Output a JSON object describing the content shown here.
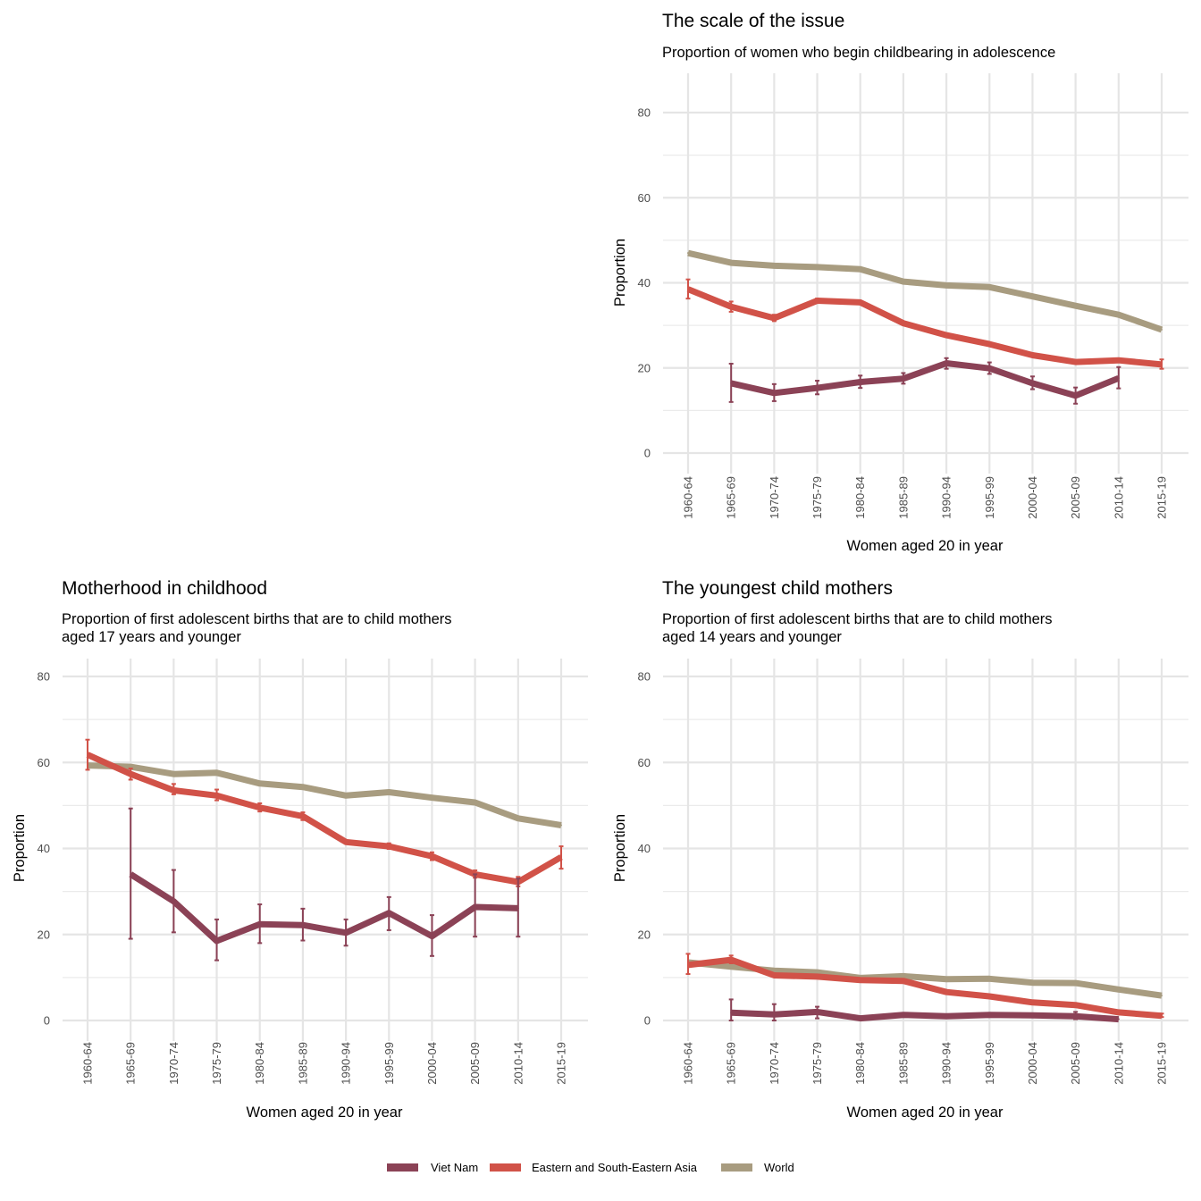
{
  "chart_data": [
    {
      "type": "line",
      "title": "The scale of the issue",
      "subtitle": "Proportion of women who begin childbearing in adolescence",
      "xlabel": "Women aged 20 in year",
      "ylabel": "Proportion",
      "ylim": [
        0,
        80
      ],
      "yticks": [
        "0",
        "20",
        "40",
        "60",
        "80"
      ],
      "grid": true,
      "categories": [
        "1960-64",
        "1965-69",
        "1970-74",
        "1975-79",
        "1980-84",
        "1985-89",
        "1990-94",
        "1995-99",
        "2000-04",
        "2005-09",
        "2010-14",
        "2015-19"
      ],
      "series": [
        {
          "name": "World",
          "values": [
            47.0,
            44.7,
            44.0,
            43.7,
            43.2,
            40.3,
            39.4,
            39.0,
            36.8,
            34.6,
            32.5,
            29.0
          ],
          "lower": [],
          "upper": []
        },
        {
          "name": "Eastern and South-Eastern Asia",
          "values": [
            38.5,
            34.4,
            31.7,
            35.8,
            35.4,
            30.5,
            27.7,
            25.6,
            23.0,
            21.4,
            21.8,
            20.8
          ],
          "lower": [
            36.3,
            33.2,
            31.0,
            35.3,
            null,
            null,
            null,
            null,
            null,
            null,
            null,
            19.8
          ],
          "upper": [
            40.8,
            35.6,
            32.5,
            36.3,
            null,
            null,
            null,
            null,
            null,
            null,
            null,
            22.0
          ]
        },
        {
          "name": "Viet Nam",
          "values": [
            null,
            16.4,
            14.1,
            15.3,
            16.7,
            17.5,
            21.1,
            19.9,
            16.4,
            13.5,
            17.6,
            null
          ],
          "lower": [
            null,
            12.0,
            12.2,
            13.8,
            15.3,
            16.3,
            19.8,
            18.6,
            15.0,
            11.6,
            15.2,
            null
          ],
          "upper": [
            null,
            21.0,
            16.2,
            17.0,
            18.2,
            18.8,
            22.3,
            21.3,
            18.0,
            15.4,
            20.2,
            null
          ]
        }
      ]
    },
    {
      "type": "line",
      "title": "Motherhood in childhood",
      "subtitle": "Proportion of first adolescent births that are to child mothers",
      "subtitle2": "aged 17 years and younger",
      "xlabel": "Women aged 20 in year",
      "ylabel": "Proportion",
      "ylim": [
        0,
        80
      ],
      "yticks": [
        "0",
        "20",
        "40",
        "60",
        "80"
      ],
      "grid": true,
      "categories": [
        "1960-64",
        "1965-69",
        "1970-74",
        "1975-79",
        "1980-84",
        "1985-89",
        "1990-94",
        "1995-99",
        "2000-04",
        "2005-09",
        "2010-14",
        "2015-19"
      ],
      "series": [
        {
          "name": "World",
          "values": [
            59.3,
            59.0,
            57.3,
            57.6,
            55.1,
            54.3,
            52.3,
            53.1,
            51.8,
            50.7,
            47.0,
            45.4
          ],
          "lower": [],
          "upper": []
        },
        {
          "name": "Eastern and South-Eastern Asia",
          "values": [
            61.8,
            57.3,
            53.5,
            52.3,
            49.5,
            47.5,
            41.5,
            40.5,
            38.2,
            34.0,
            32.2,
            38.0
          ],
          "lower": [
            58.3,
            56.0,
            52.6,
            51.2,
            48.6,
            46.6,
            null,
            39.9,
            37.3,
            33.2,
            31.2,
            35.3
          ],
          "upper": [
            65.3,
            58.6,
            55.0,
            53.7,
            50.5,
            48.4,
            null,
            41.2,
            39.1,
            34.9,
            33.4,
            40.5
          ]
        },
        {
          "name": "Viet Nam",
          "values": [
            null,
            34.0,
            27.7,
            18.5,
            22.4,
            22.2,
            20.4,
            25.0,
            19.6,
            26.4,
            26.1,
            null
          ],
          "lower": [
            null,
            19.0,
            20.5,
            14.0,
            18.0,
            18.6,
            17.4,
            21.0,
            15.0,
            19.5,
            19.5,
            null
          ],
          "upper": [
            null,
            49.3,
            35.0,
            23.5,
            27.0,
            26.0,
            23.5,
            28.7,
            24.5,
            34.0,
            33.0,
            null
          ]
        }
      ]
    },
    {
      "type": "line",
      "title": "The youngest child mothers",
      "subtitle": "Proportion of first adolescent births that are to child mothers",
      "subtitle2": "aged 14 years and younger",
      "xlabel": "Women aged 20 in year",
      "ylabel": "Proportion",
      "ylim": [
        0,
        80
      ],
      "yticks": [
        "0",
        "20",
        "40",
        "60",
        "80"
      ],
      "grid": true,
      "categories": [
        "1960-64",
        "1965-69",
        "1970-74",
        "1975-79",
        "1980-84",
        "1985-89",
        "1990-94",
        "1995-99",
        "2000-04",
        "2005-09",
        "2010-14",
        "2015-19"
      ],
      "series": [
        {
          "name": "World",
          "values": [
            13.5,
            12.5,
            11.6,
            11.2,
            9.9,
            10.3,
            9.6,
            9.7,
            8.8,
            8.7,
            7.2,
            5.8
          ],
          "lower": [],
          "upper": []
        },
        {
          "name": "Eastern and South-Eastern Asia",
          "values": [
            12.9,
            14.1,
            10.5,
            10.2,
            9.4,
            9.2,
            6.6,
            5.6,
            4.2,
            3.6,
            1.9,
            1.1
          ],
          "lower": [
            10.8,
            13.3,
            10.2,
            10.0,
            9.2,
            8.9,
            null,
            null,
            null,
            3.3,
            null,
            0.8
          ],
          "upper": [
            15.5,
            15.1,
            11.0,
            10.5,
            9.7,
            9.5,
            null,
            null,
            null,
            4.0,
            null,
            1.6
          ]
        },
        {
          "name": "Viet Nam",
          "values": [
            null,
            1.8,
            1.4,
            2.0,
            0.5,
            1.3,
            1.0,
            1.3,
            1.2,
            1.0,
            0.3,
            null
          ],
          "lower": [
            null,
            0.0,
            0.0,
            0.5,
            null,
            1.0,
            null,
            0.9,
            0.8,
            0.3,
            null,
            null
          ],
          "upper": [
            null,
            4.9,
            3.8,
            3.2,
            null,
            1.7,
            null,
            1.6,
            1.6,
            2.0,
            null,
            null
          ]
        }
      ]
    }
  ],
  "legend": {
    "position": "bottom",
    "items": [
      {
        "label": "Viet Nam",
        "color": "#8b4256"
      },
      {
        "label": "Eastern and South-Eastern Asia",
        "color": "#d15248"
      },
      {
        "label": "World",
        "color": "#a89c80"
      }
    ]
  },
  "colors": {
    "Viet Nam": "#8b4256",
    "Eastern and South-Eastern Asia": "#d15248",
    "World": "#a89c80"
  }
}
